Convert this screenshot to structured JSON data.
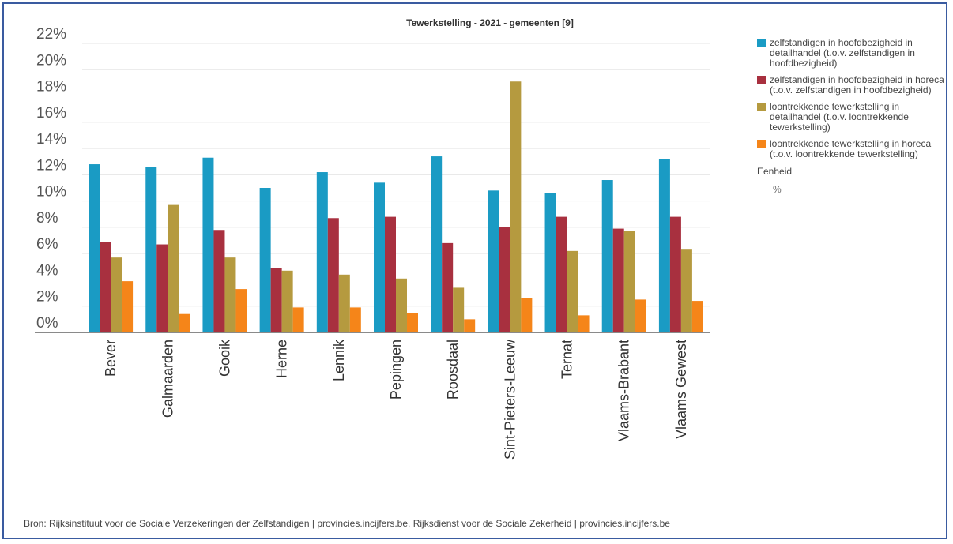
{
  "chart_data": {
    "type": "bar",
    "title": "Tewerkstelling - 2021 - gemeenten [9]",
    "categories": [
      "Bever",
      "Galmaarden",
      "Gooik",
      "Herne",
      "Lennik",
      "Pepingen",
      "Roosdaal",
      "Sint-Pieters-Leeuw",
      "Ternat",
      "Vlaams-Brabant",
      "Vlaams Gewest"
    ],
    "series": [
      {
        "name": "zelfstandigen in hoofdbezigheid in detailhandel (t.o.v. zelfstandigen in hoofdbezigheid)",
        "color": "#1a9bc4",
        "values": [
          12.8,
          12.6,
          13.3,
          11.0,
          12.2,
          11.4,
          13.4,
          10.8,
          10.6,
          11.6,
          13.2
        ]
      },
      {
        "name": "zelfstandigen in hoofdbezigheid in horeca (t.o.v. zelfstandigen in hoofdbezigheid)",
        "color": "#a8303f",
        "values": [
          6.9,
          6.7,
          7.8,
          4.9,
          8.7,
          8.8,
          6.8,
          8.0,
          8.8,
          7.9,
          8.8
        ]
      },
      {
        "name": "loontrekkende tewerkstelling in detailhandel (t.o.v. loontrekkende tewerkstelling)",
        "color": "#b59a3f",
        "values": [
          5.7,
          9.7,
          5.7,
          4.7,
          4.4,
          4.1,
          3.4,
          19.1,
          6.2,
          7.7,
          6.3
        ]
      },
      {
        "name": "loontrekkende tewerkstelling in horeca (t.o.v. loontrekkende tewerkstelling)",
        "color": "#f58519",
        "values": [
          3.9,
          1.4,
          3.3,
          1.9,
          1.9,
          1.5,
          1.0,
          2.6,
          1.3,
          2.5,
          2.4
        ]
      }
    ],
    "y_ticks": [
      "0%",
      "2%",
      "4%",
      "6%",
      "8%",
      "10%",
      "12%",
      "14%",
      "16%",
      "18%",
      "20%",
      "22%"
    ],
    "ylim": [
      0,
      22
    ],
    "grid": true,
    "legend_position": "right"
  },
  "legend": {
    "items": [
      "zelfstandigen in hoofdbezigheid in detailhandel (t.o.v. zelfstandigen in hoofdbezigheid)",
      "zelfstandigen in hoofdbezigheid in horeca (t.o.v. zelfstandigen in hoofdbezigheid)",
      "loontrekkende tewerkstelling in detailhandel (t.o.v. loontrekkende tewerkstelling)",
      "loontrekkende tewerkstelling in horeca (t.o.v. loontrekkende tewerkstelling)"
    ],
    "unit_title": "Eenheid",
    "unit_value": "%"
  },
  "source": "Bron: Rijksinstituut voor de Sociale Verzekeringen der Zelfstandigen | provincies.incijfers.be, Rijksdienst voor de Sociale Zekerheid | provincies.incijfers.be"
}
